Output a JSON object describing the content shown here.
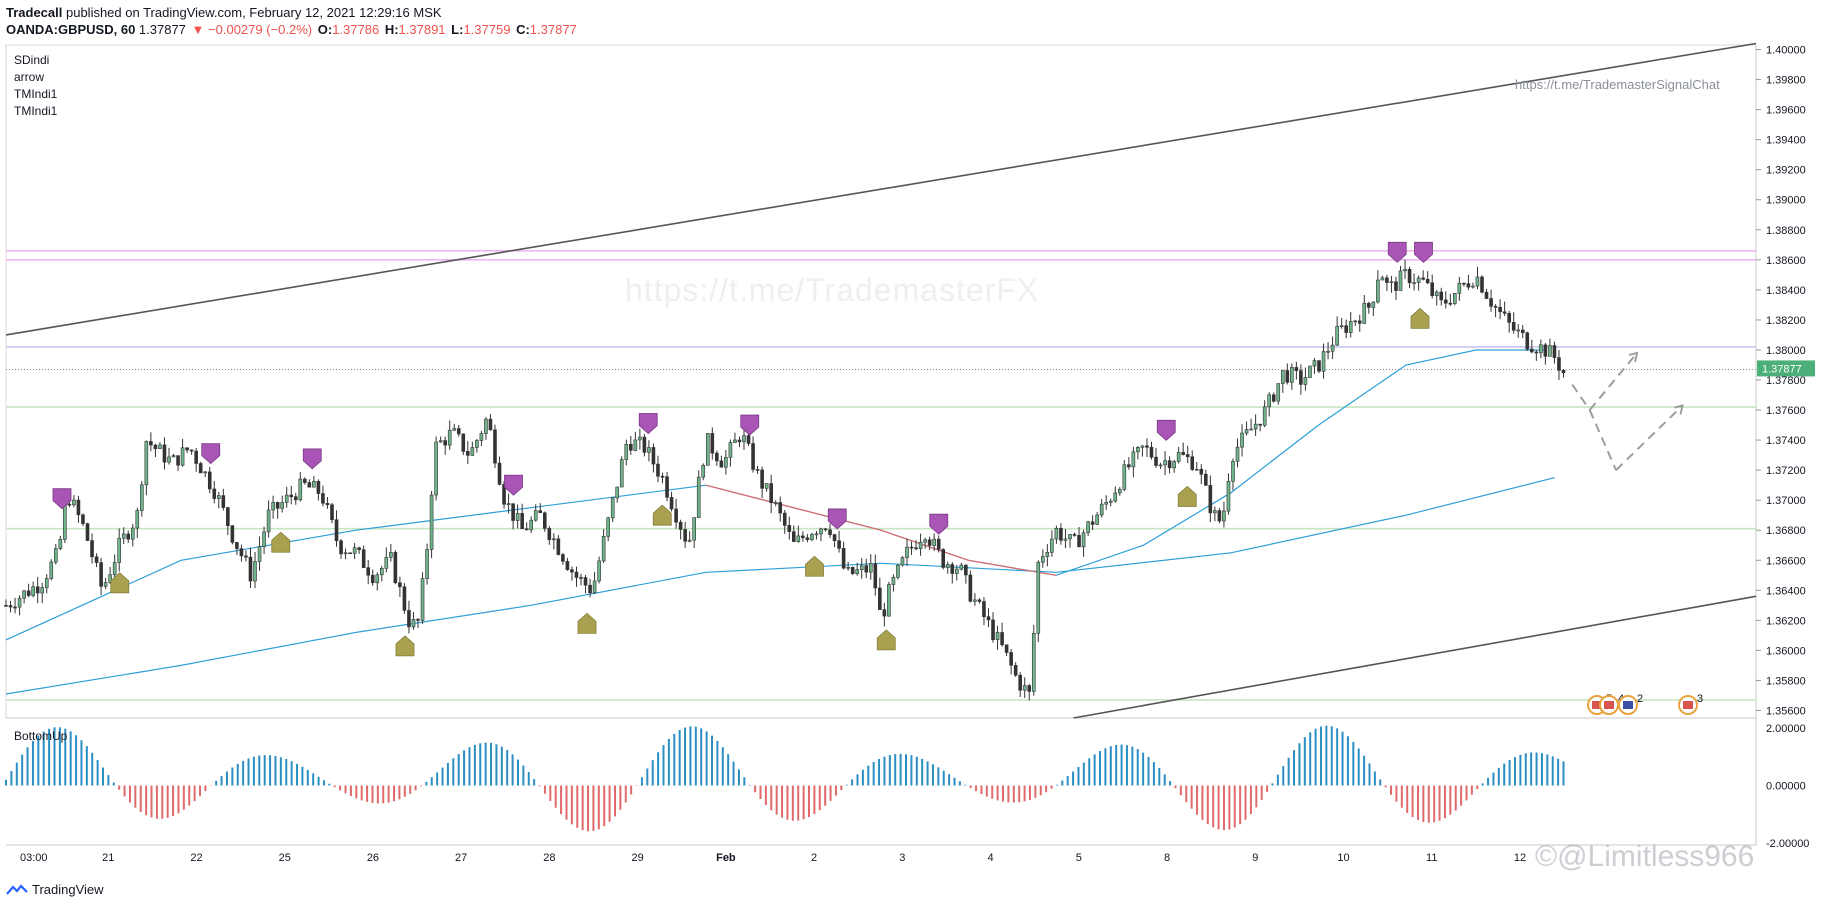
{
  "header": {
    "author": "Tradecall",
    "published_text": " published on TradingView.com, February 12, 2021 12:29:16 MSK",
    "symbol": "OANDA:GBPUSD, 60",
    "last": "1.37877",
    "change": "▼ −0.00279 (−0.2%)",
    "open_label": "O:",
    "open": "1.37786",
    "high_label": "H:",
    "high": "1.37891",
    "low_label": "L:",
    "low": "1.37759",
    "close_label": "C:",
    "close": "1.37877"
  },
  "legend": [
    "SDindi",
    "arrow",
    "TMIndi1",
    "TMIndi1"
  ],
  "watermark": "https://t.me/TrademasterFX",
  "link_text": "https://t.me/TrademasterSignalChat",
  "indicator_label": "BottomUp",
  "footer_brand": "TradingView",
  "corner_watermark": "©@Limitless966",
  "colors": {
    "up": "#26a69a",
    "down": "#ef5350",
    "candle": "#333333",
    "ma_blue": "#2e9fd8",
    "ma_red": "#e06666",
    "pink": "#f1b4f0",
    "lavender": "#c8c4ef",
    "green_line": "#c7e6c3",
    "marker_purple": "#a855b5",
    "marker_olive": "#a9a14f",
    "hist_blue": "#2a8ec4",
    "hist_red": "#e06a6a",
    "price_tag": "#4caf7a"
  },
  "chart_data": {
    "type": "candlestick",
    "price_axis": {
      "ticks": [
        "1.40000",
        "1.39800",
        "1.39600",
        "1.39400",
        "1.39200",
        "1.39000",
        "1.38800",
        "1.38600",
        "1.38400",
        "1.38200",
        "1.38000",
        "1.37800",
        "1.37600",
        "1.37400",
        "1.37200",
        "1.37000",
        "1.36800",
        "1.36600",
        "1.36400",
        "1.36200",
        "1.36000",
        "1.35800",
        "1.35600"
      ],
      "range": [
        1.3555,
        1.4003
      ],
      "current_price": "1.37877"
    },
    "x_ticks": [
      "03:00",
      "21",
      "22",
      "25",
      "26",
      "27",
      "28",
      "29",
      "Feb",
      "2",
      "3",
      "4",
      "5",
      "8",
      "9",
      "10",
      "11",
      "12"
    ],
    "horizontal_levels": [
      {
        "price": 1.3866,
        "color": "pink"
      },
      {
        "price": 1.386,
        "color": "pink"
      },
      {
        "price": 1.3802,
        "color": "lavender"
      },
      {
        "price": 1.3787,
        "color": "dotted"
      },
      {
        "price": 1.3762,
        "color": "green"
      },
      {
        "price": 1.3681,
        "color": "green"
      },
      {
        "price": 1.3567,
        "color": "green"
      }
    ],
    "channel_lines": [
      {
        "from": [
          0,
          1.381
        ],
        "to": [
          1,
          1.4004
        ]
      },
      {
        "from": [
          0.61,
          1.3555
        ],
        "to": [
          1,
          1.3636
        ]
      }
    ],
    "close_path": [
      [
        0,
        1.363
      ],
      [
        0.02,
        1.3645
      ],
      [
        0.03,
        1.3665
      ],
      [
        0.035,
        1.3705
      ],
      [
        0.045,
        1.368
      ],
      [
        0.055,
        1.364
      ],
      [
        0.065,
        1.367
      ],
      [
        0.075,
        1.369
      ],
      [
        0.08,
        1.374
      ],
      [
        0.095,
        1.3725
      ],
      [
        0.105,
        1.3735
      ],
      [
        0.12,
        1.3705
      ],
      [
        0.13,
        1.3675
      ],
      [
        0.14,
        1.365
      ],
      [
        0.15,
        1.369
      ],
      [
        0.16,
        1.37
      ],
      [
        0.17,
        1.371
      ],
      [
        0.18,
        1.3705
      ],
      [
        0.19,
        1.367
      ],
      [
        0.2,
        1.3665
      ],
      [
        0.21,
        1.365
      ],
      [
        0.22,
        1.366
      ],
      [
        0.23,
        1.362
      ],
      [
        0.235,
        1.3615
      ],
      [
        0.24,
        1.366
      ],
      [
        0.245,
        1.3735
      ],
      [
        0.255,
        1.3745
      ],
      [
        0.265,
        1.373
      ],
      [
        0.275,
        1.3755
      ],
      [
        0.285,
        1.37
      ],
      [
        0.295,
        1.368
      ],
      [
        0.305,
        1.369
      ],
      [
        0.315,
        1.367
      ],
      [
        0.325,
        1.365
      ],
      [
        0.335,
        1.364
      ],
      [
        0.345,
        1.369
      ],
      [
        0.355,
        1.374
      ],
      [
        0.365,
        1.3735
      ],
      [
        0.375,
        1.3715
      ],
      [
        0.385,
        1.3685
      ],
      [
        0.39,
        1.367
      ],
      [
        0.4,
        1.374
      ],
      [
        0.41,
        1.3725
      ],
      [
        0.42,
        1.3745
      ],
      [
        0.43,
        1.3715
      ],
      [
        0.44,
        1.3695
      ],
      [
        0.45,
        1.367
      ],
      [
        0.46,
        1.368
      ],
      [
        0.47,
        1.3685
      ],
      [
        0.48,
        1.365
      ],
      [
        0.495,
        1.3655
      ],
      [
        0.5,
        1.362
      ],
      [
        0.505,
        1.364
      ],
      [
        0.515,
        1.3665
      ],
      [
        0.525,
        1.368
      ],
      [
        0.535,
        1.366
      ],
      [
        0.545,
        1.3655
      ],
      [
        0.55,
        1.364
      ],
      [
        0.56,
        1.362
      ],
      [
        0.57,
        1.36
      ],
      [
        0.578,
        1.358
      ],
      [
        0.585,
        1.357
      ],
      [
        0.59,
        1.366
      ],
      [
        0.6,
        1.368
      ],
      [
        0.61,
        1.367
      ],
      [
        0.62,
        1.3685
      ],
      [
        0.63,
        1.37
      ],
      [
        0.64,
        1.372
      ],
      [
        0.65,
        1.3735
      ],
      [
        0.66,
        1.3725
      ],
      [
        0.67,
        1.373
      ],
      [
        0.68,
        1.3725
      ],
      [
        0.69,
        1.369
      ],
      [
        0.695,
        1.3685
      ],
      [
        0.7,
        1.373
      ],
      [
        0.71,
        1.3745
      ],
      [
        0.72,
        1.376
      ],
      [
        0.73,
        1.3785
      ],
      [
        0.74,
        1.378
      ],
      [
        0.75,
        1.379
      ],
      [
        0.76,
        1.381
      ],
      [
        0.77,
        1.382
      ],
      [
        0.78,
        1.383
      ],
      [
        0.785,
        1.3855
      ],
      [
        0.79,
        1.384
      ],
      [
        0.8,
        1.385
      ],
      [
        0.81,
        1.3845
      ],
      [
        0.82,
        1.383
      ],
      [
        0.83,
        1.384
      ],
      [
        0.84,
        1.385
      ],
      [
        0.85,
        1.383
      ],
      [
        0.86,
        1.3815
      ],
      [
        0.87,
        1.3805
      ],
      [
        0.88,
        1.38
      ],
      [
        0.885,
        1.3795
      ],
      [
        0.89,
        1.3785
      ]
    ],
    "ma_fast": [
      [
        0,
        1.3607
      ],
      [
        0.1,
        1.366
      ],
      [
        0.2,
        1.368
      ],
      [
        0.3,
        1.3695
      ],
      [
        0.4,
        1.371
      ],
      [
        0.5,
        1.368
      ],
      [
        0.55,
        1.366
      ],
      [
        0.6,
        1.365
      ],
      [
        0.65,
        1.367
      ],
      [
        0.7,
        1.3705
      ],
      [
        0.75,
        1.375
      ],
      [
        0.8,
        1.379
      ],
      [
        0.84,
        1.38
      ],
      [
        0.88,
        1.38
      ]
    ],
    "ma_slow": [
      [
        0,
        1.3571
      ],
      [
        0.1,
        1.359
      ],
      [
        0.2,
        1.3612
      ],
      [
        0.3,
        1.363
      ],
      [
        0.4,
        1.3652
      ],
      [
        0.5,
        1.3658
      ],
      [
        0.6,
        1.3652
      ],
      [
        0.7,
        1.3665
      ],
      [
        0.8,
        1.369
      ],
      [
        0.885,
        1.3715
      ]
    ],
    "projection": [
      [
        0.895,
        1.3777
      ],
      [
        0.932,
        1.3798
      ],
      [
        0.92,
        1.374
      ],
      [
        0.958,
        1.3763
      ],
      [
        0.925,
        1.3752
      ],
      [
        0.91,
        1.3762
      ]
    ],
    "histogram": {
      "range": [
        -2.0,
        2.0
      ],
      "ticks": [
        "2.00000",
        "0.00000",
        "-2.00000"
      ]
    },
    "event_badges": [
      {
        "label": "5",
        "flag": "us"
      },
      {
        "label": "4",
        "flag": "us"
      },
      {
        "label": "2",
        "flag": "uk"
      },
      {
        "label": "3",
        "flag": "us"
      }
    ]
  }
}
